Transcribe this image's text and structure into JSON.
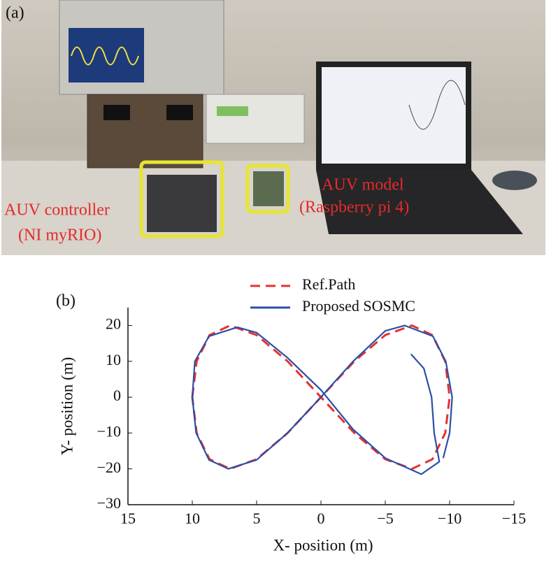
{
  "panel_a": {
    "label": "(a)",
    "controller_title": "AUV controller",
    "controller_sub": "(NI myRIO)",
    "model_title": "AUV model",
    "model_sub": "(Raspberry pi 4)"
  },
  "chart_data": {
    "type": "line",
    "panel_label": "(b)",
    "xlabel": "X- position (m)",
    "ylabel": "Y- position (m)",
    "xlim": [
      15,
      -15
    ],
    "ylim": [
      -30,
      25
    ],
    "xticks": [
      15,
      10,
      5,
      0,
      {
        "value": -5,
        "label": "−5"
      },
      {
        "value": -10,
        "label": "−10"
      },
      {
        "value": -15,
        "label": "−15"
      }
    ],
    "yticks": [
      {
        "value": -30,
        "label": "−30"
      },
      {
        "value": -20,
        "label": "−20"
      },
      {
        "value": -10,
        "label": "−10"
      },
      0,
      10,
      20
    ],
    "series": [
      {
        "name": "Ref.Path",
        "color": "#e8312f",
        "dash": true,
        "x": [
          10,
          9.66,
          8.66,
          7.07,
          5,
          2.59,
          0,
          -2.59,
          -5,
          -7.07,
          -8.66,
          -9.66,
          -10,
          -9.66,
          -8.66,
          -7.07,
          -5,
          -2.59,
          0,
          2.59,
          5,
          7.07,
          8.66,
          9.66,
          10
        ],
        "values": [
          0,
          10,
          17.32,
          20,
          17.32,
          10,
          0,
          -10,
          -17.32,
          -20,
          -17.32,
          -10,
          0,
          10,
          17.32,
          20,
          17.32,
          10,
          0,
          -10,
          -17.32,
          -20,
          -17.32,
          -10,
          0
        ]
      },
      {
        "name": "Proposed SOSMC",
        "color": "#2b4fa8",
        "dash": false,
        "x": [
          -7,
          -8,
          -8.6,
          -8.8,
          -9.2,
          -7.8,
          -5,
          -2.5,
          0,
          2.6,
          5,
          6.5,
          8.7,
          9.8,
          10,
          9.7,
          8.7,
          7.2,
          5,
          2.6,
          0,
          -2.5,
          -5,
          -6.5,
          -8.7,
          -9.7,
          -10.2,
          -10,
          -9.5
        ],
        "values": [
          12,
          8,
          0,
          -10,
          -18,
          -21.5,
          -17,
          -9,
          2,
          11,
          18,
          19.5,
          17,
          10,
          0,
          -10,
          -17.5,
          -20,
          -17.5,
          -10,
          0,
          10,
          18.5,
          20,
          17,
          10,
          0,
          -10,
          -17
        ]
      }
    ]
  }
}
